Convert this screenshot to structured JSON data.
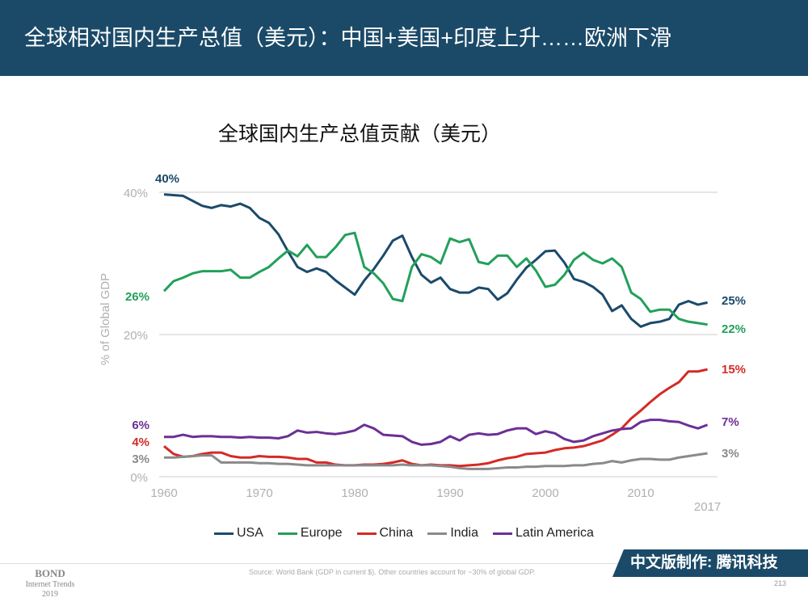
{
  "header": {
    "title": "全球相对国内生产总值（美元）：中国+美国+印度上升……欧洲下滑"
  },
  "footer": {
    "bond": "BOND",
    "bond_sub": "Internet Trends",
    "bond_year": "2019",
    "source": "Source: World Bank (GDP in current $). Other countries account for ~30% of global GDP.",
    "badge": "中文版制作: 腾讯科技",
    "page": "213"
  },
  "chart_data": {
    "type": "line",
    "title": "全球国内生产总值贡献（美元）",
    "ylabel": "% of Global GDP",
    "xlabel": "",
    "ylim": [
      0,
      40
    ],
    "xlim": [
      1960,
      2017
    ],
    "yticks": [
      "0%",
      "20%",
      "40%"
    ],
    "xticks": [
      "1960",
      "1970",
      "1980",
      "1990",
      "2000",
      "2010",
      "2017"
    ],
    "grid": true,
    "legend": "bottom",
    "x_start": 1960,
    "series": [
      {
        "name": "USA",
        "color": "#1b4a6b",
        "start_label": "40%",
        "end_label": "25%",
        "values": [
          39.7,
          39.6,
          39.5,
          38.8,
          38.1,
          37.8,
          38.2,
          38.0,
          38.4,
          37.8,
          36.4,
          35.7,
          34.1,
          31.7,
          29.5,
          28.8,
          29.3,
          28.8,
          27.6,
          26.6,
          25.6,
          27.6,
          29.2,
          31.1,
          33.2,
          33.9,
          30.9,
          28.4,
          27.3,
          28.0,
          26.4,
          25.9,
          25.9,
          26.6,
          26.4,
          24.9,
          25.8,
          27.7,
          29.4,
          30.5,
          31.7,
          31.8,
          30.1,
          27.8,
          27.4,
          26.7,
          25.6,
          23.3,
          24.1,
          22.2,
          21.1,
          21.6,
          21.8,
          22.2,
          24.2,
          24.7,
          24.2,
          24.5
        ]
      },
      {
        "name": "Europe",
        "color": "#22a05a",
        "start_label": "26%",
        "end_label": "22%",
        "values": [
          26.1,
          27.5,
          28.0,
          28.6,
          28.9,
          28.9,
          28.9,
          29.1,
          28.0,
          28.0,
          28.8,
          29.5,
          30.7,
          31.8,
          31.0,
          32.6,
          30.9,
          30.9,
          32.3,
          34.0,
          34.3,
          29.5,
          28.6,
          27.2,
          25.0,
          24.7,
          29.5,
          31.3,
          30.9,
          30.0,
          33.5,
          33.0,
          33.4,
          30.2,
          29.9,
          31.1,
          31.1,
          29.5,
          30.7,
          29.0,
          26.7,
          27.0,
          28.4,
          30.5,
          31.5,
          30.5,
          30.0,
          30.7,
          29.5,
          25.9,
          25.0,
          23.2,
          23.5,
          23.5,
          22.2,
          21.8,
          21.6,
          21.4
        ]
      },
      {
        "name": "China",
        "color": "#d42a26",
        "start_label": "4%",
        "end_label": "15%",
        "values": [
          4.3,
          3.2,
          2.8,
          2.9,
          3.2,
          3.4,
          3.4,
          2.9,
          2.7,
          2.7,
          2.9,
          2.8,
          2.8,
          2.7,
          2.5,
          2.5,
          2.0,
          2.0,
          1.7,
          1.6,
          1.6,
          1.7,
          1.7,
          1.8,
          2.0,
          2.3,
          1.8,
          1.6,
          1.7,
          1.6,
          1.6,
          1.5,
          1.6,
          1.7,
          1.9,
          2.3,
          2.6,
          2.8,
          3.2,
          3.3,
          3.4,
          3.75,
          4.0,
          4.1,
          4.3,
          4.7,
          5.1,
          5.9,
          6.8,
          8.2,
          9.3,
          10.5,
          11.6,
          12.5,
          13.3,
          14.8,
          14.8,
          15.1
        ]
      },
      {
        "name": "India",
        "color": "#8a8a8a",
        "start_label": "3%",
        "end_label": "3%",
        "values": [
          2.7,
          2.7,
          2.8,
          2.9,
          3.0,
          3.0,
          2.0,
          2.0,
          2.0,
          2.0,
          1.9,
          1.9,
          1.8,
          1.8,
          1.7,
          1.6,
          1.6,
          1.6,
          1.6,
          1.6,
          1.6,
          1.6,
          1.6,
          1.6,
          1.6,
          1.7,
          1.6,
          1.6,
          1.6,
          1.5,
          1.4,
          1.2,
          1.1,
          1.1,
          1.1,
          1.2,
          1.3,
          1.3,
          1.4,
          1.4,
          1.5,
          1.5,
          1.5,
          1.6,
          1.6,
          1.8,
          1.9,
          2.2,
          2.0,
          2.3,
          2.5,
          2.5,
          2.4,
          2.4,
          2.7,
          2.9,
          3.1,
          3.3
        ]
      },
      {
        "name": "Latin America",
        "color": "#6b2f96",
        "start_label": "6%",
        "end_label": "7%",
        "values": [
          5.6,
          5.6,
          5.9,
          5.6,
          5.7,
          5.7,
          5.6,
          5.6,
          5.5,
          5.6,
          5.5,
          5.5,
          5.4,
          5.7,
          6.5,
          6.2,
          6.3,
          6.1,
          6.0,
          6.2,
          6.5,
          7.3,
          6.8,
          5.9,
          5.8,
          5.7,
          4.9,
          4.5,
          4.6,
          4.9,
          5.7,
          5.1,
          5.9,
          6.1,
          5.9,
          6.0,
          6.5,
          6.8,
          6.8,
          6.0,
          6.4,
          6.1,
          5.3,
          4.9,
          5.1,
          5.7,
          6.1,
          6.5,
          6.7,
          6.8,
          7.7,
          8.0,
          8.0,
          7.8,
          7.7,
          7.2,
          6.8,
          7.3
        ]
      }
    ]
  }
}
